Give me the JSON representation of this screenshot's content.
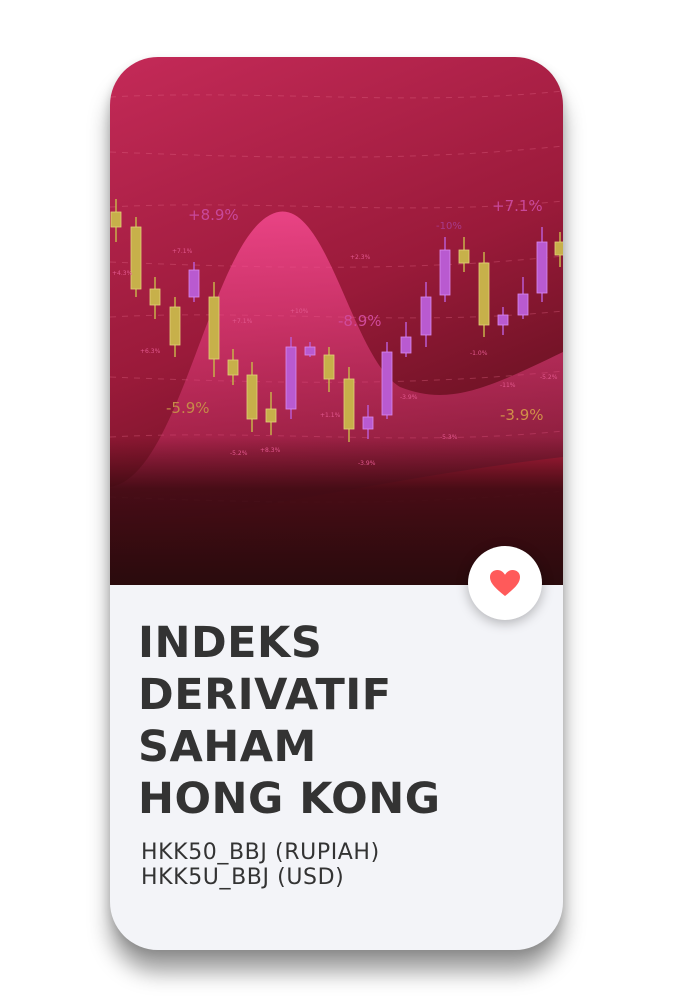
{
  "card": {
    "title_lines": [
      "INDEKS",
      "DERIVATIF",
      "SAHAM",
      "HONG KONG"
    ],
    "codes": [
      "HKK50_BBJ (RUPIAH)",
      "HKK5U_BBJ (USD)"
    ],
    "favorite_icon": "heart-icon",
    "favorite_color": "#ff5a5a"
  },
  "hero": {
    "big_labels": [
      "+8.9%",
      "+7.1%",
      "-8.9%",
      "-5.9%",
      "-3.9%",
      "-10%"
    ],
    "small_labels": [
      "+4.3%",
      "+7.1%",
      "+6.3%",
      "+7.1%",
      "+10%",
      "+2.3%",
      "+1.1%",
      "-5.2%",
      "+8.3%",
      "-3.9%",
      "-3.9%",
      "-5.3%",
      "-1.0%",
      "-11%",
      "-5.2%"
    ],
    "bg_colors": [
      "#c42a58",
      "#7f1428",
      "#2a0b0d"
    ]
  }
}
